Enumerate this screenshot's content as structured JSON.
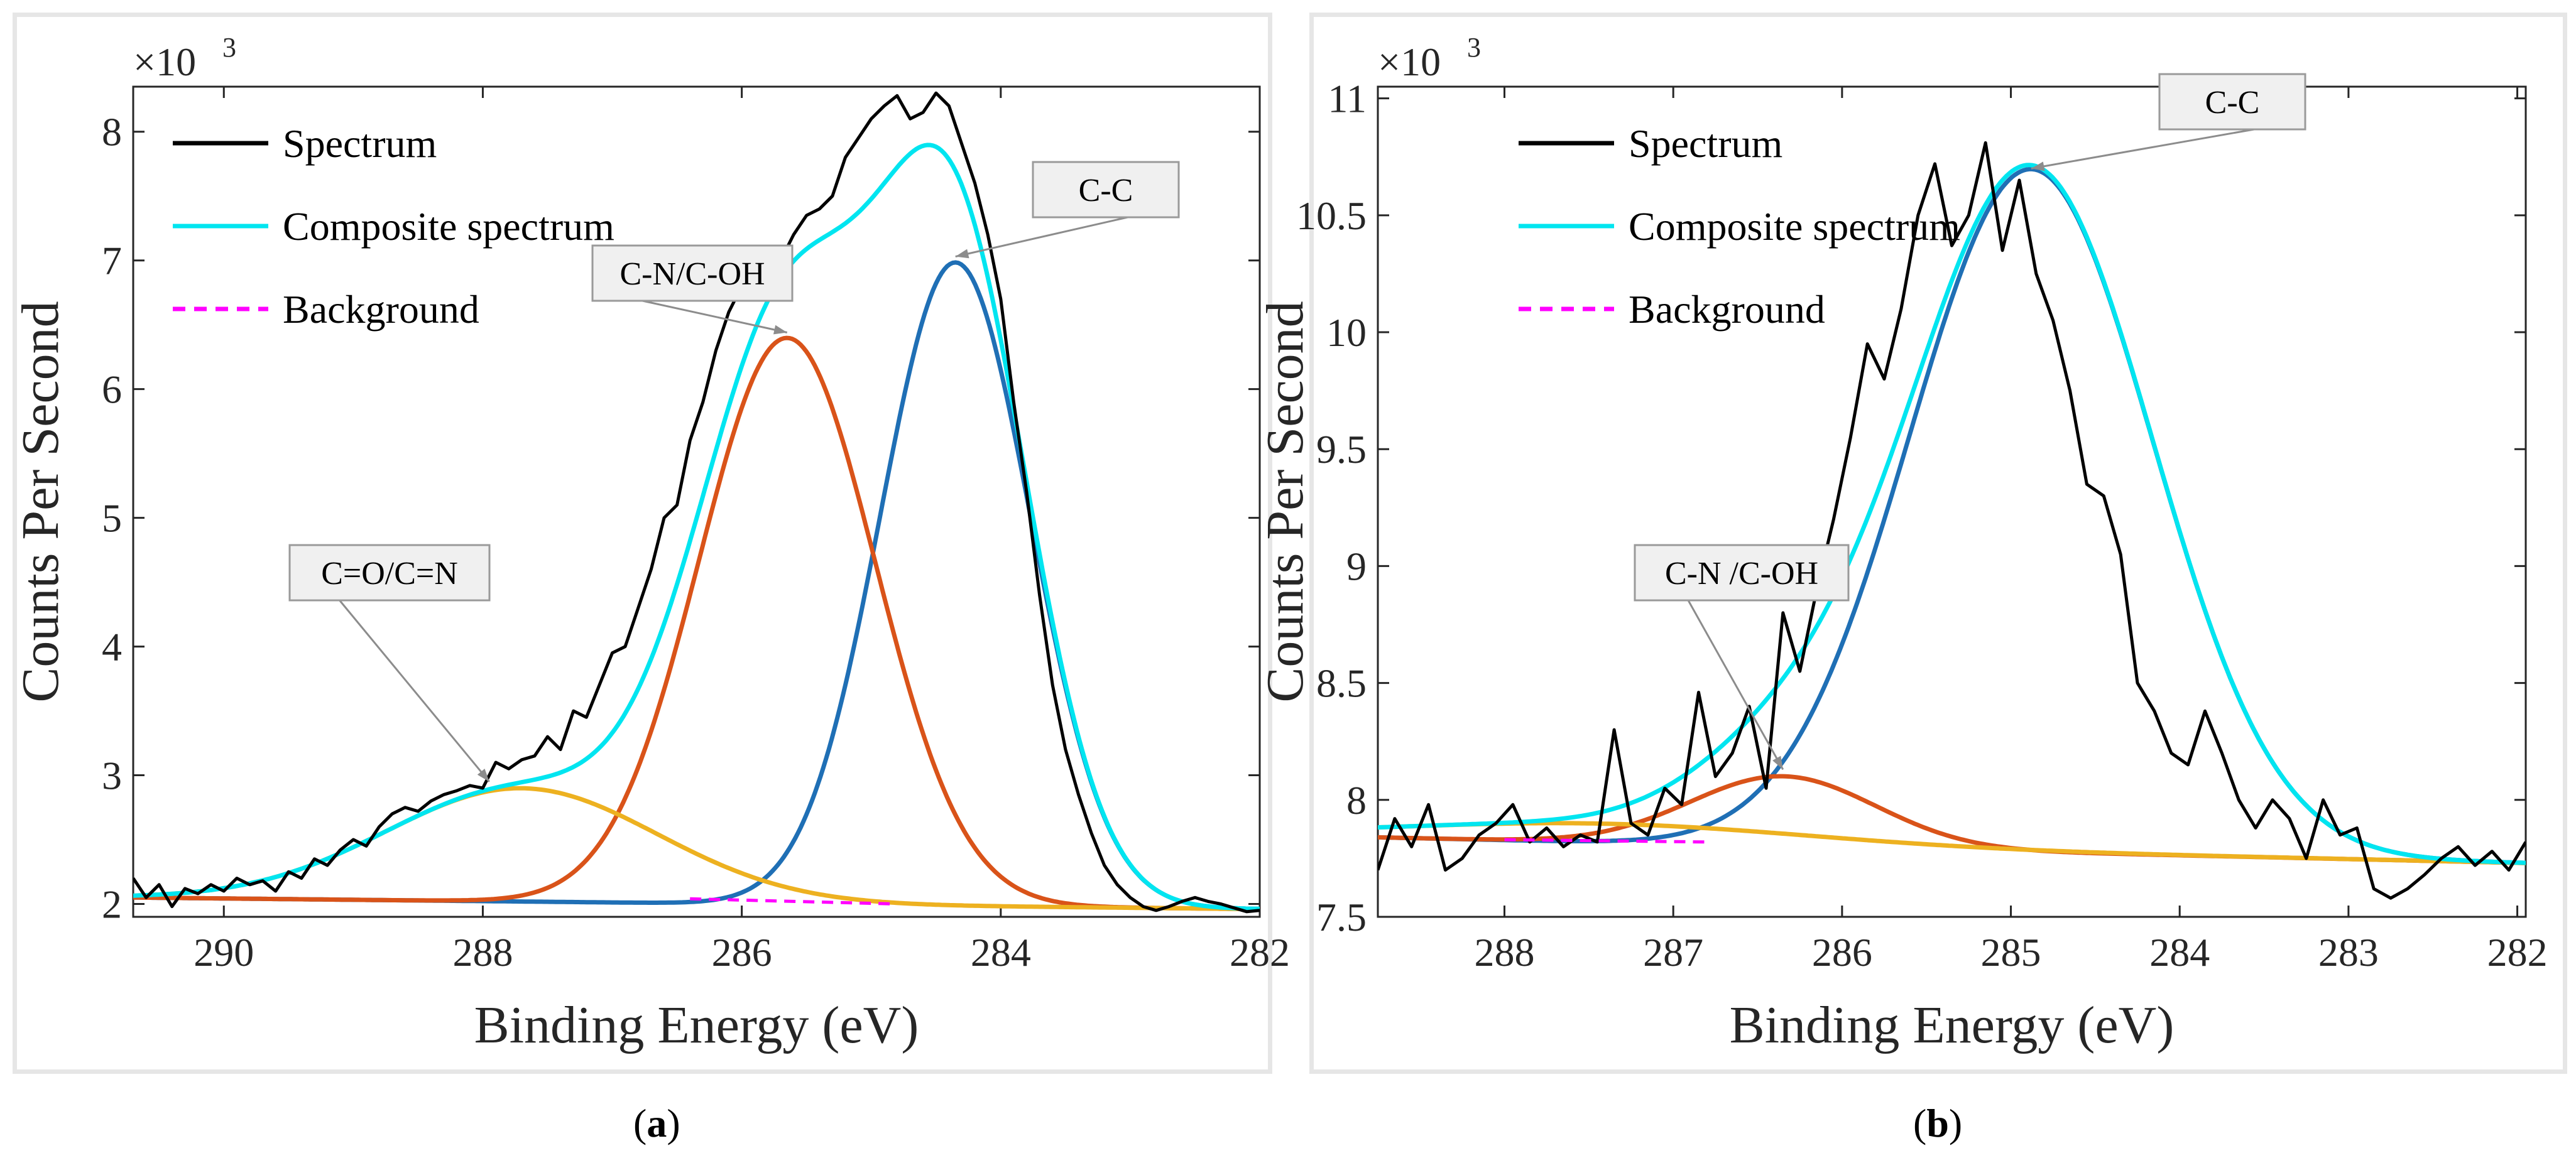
{
  "chart_data": [
    {
      "type": "line",
      "panel_label": "a",
      "xlabel": "Binding Energy (eV)",
      "ylabel": "Counts Per Second",
      "y_exponent_base": "×10",
      "y_exponent": "3",
      "xlim": [
        290.7,
        282.0
      ],
      "ylim": [
        1.9,
        8.35
      ],
      "xticks": [
        290,
        288,
        286,
        284,
        282
      ],
      "yticks": [
        2,
        3,
        4,
        5,
        6,
        7,
        8
      ],
      "legend": [
        {
          "label": "Spectrum",
          "color": "#000000",
          "style": "solid"
        },
        {
          "label": "Composite spectrum",
          "color": "#00e5f0",
          "style": "solid"
        },
        {
          "label": "Background",
          "color": "#ff00ff",
          "style": "dashed"
        }
      ],
      "background": {
        "name": "Background",
        "x": [
          286.4,
          284.8
        ],
        "y": [
          2.04,
          2.0
        ]
      },
      "peaks": [
        {
          "name": "C-C",
          "color": "#1f6fb5",
          "center": 284.35,
          "height": 5.0,
          "sigma": 0.58
        },
        {
          "name": "C-N/C-OH",
          "color": "#d95319",
          "center": 285.65,
          "height": 4.4,
          "sigma": 0.68
        },
        {
          "name": "C=O/C=N",
          "color": "#edb120",
          "center": 287.7,
          "height": 0.88,
          "sigma": 1.05
        }
      ],
      "spectrum": {
        "name": "Spectrum",
        "x": [
          290.7,
          290.6,
          290.5,
          290.4,
          290.3,
          290.2,
          290.1,
          290.0,
          289.9,
          289.8,
          289.7,
          289.6,
          289.5,
          289.4,
          289.3,
          289.2,
          289.1,
          289.0,
          288.9,
          288.8,
          288.7,
          288.6,
          288.5,
          288.4,
          288.3,
          288.2,
          288.1,
          288.0,
          287.9,
          287.8,
          287.7,
          287.6,
          287.5,
          287.4,
          287.3,
          287.2,
          287.1,
          287.0,
          286.9,
          286.8,
          286.7,
          286.6,
          286.5,
          286.4,
          286.3,
          286.2,
          286.1,
          286.0,
          285.9,
          285.8,
          285.7,
          285.6,
          285.5,
          285.4,
          285.3,
          285.2,
          285.1,
          285.0,
          284.9,
          284.8,
          284.7,
          284.6,
          284.5,
          284.4,
          284.3,
          284.2,
          284.1,
          284.0,
          283.9,
          283.8,
          283.7,
          283.6,
          283.5,
          283.4,
          283.3,
          283.2,
          283.1,
          283.0,
          282.9,
          282.8,
          282.7,
          282.6,
          282.5,
          282.4,
          282.3,
          282.2,
          282.1,
          282.0
        ],
        "y": [
          2.2,
          2.05,
          2.15,
          1.98,
          2.12,
          2.08,
          2.15,
          2.1,
          2.2,
          2.15,
          2.18,
          2.1,
          2.25,
          2.2,
          2.35,
          2.3,
          2.42,
          2.5,
          2.45,
          2.6,
          2.7,
          2.75,
          2.72,
          2.8,
          2.85,
          2.88,
          2.92,
          2.9,
          3.1,
          3.05,
          3.12,
          3.15,
          3.3,
          3.2,
          3.5,
          3.45,
          3.7,
          3.95,
          4.0,
          4.3,
          4.6,
          5.0,
          5.1,
          5.6,
          5.9,
          6.3,
          6.6,
          6.8,
          6.75,
          6.95,
          7.0,
          7.2,
          7.35,
          7.4,
          7.5,
          7.8,
          7.95,
          8.1,
          8.2,
          8.28,
          8.1,
          8.15,
          8.3,
          8.2,
          7.9,
          7.6,
          7.2,
          6.7,
          5.9,
          5.2,
          4.4,
          3.7,
          3.2,
          2.85,
          2.55,
          2.3,
          2.15,
          2.05,
          1.98,
          1.95,
          1.98,
          2.02,
          2.05,
          2.02,
          2.0,
          1.97,
          1.94,
          1.95
        ]
      },
      "annotations": [
        {
          "text": "C-C",
          "target_x": 284.35,
          "target_y": 7.03
        },
        {
          "text": "C-N/C-OH",
          "target_x": 285.65,
          "target_y": 6.44
        },
        {
          "text": "C=O/C=N",
          "target_x": 287.95,
          "target_y": 2.95
        }
      ]
    },
    {
      "type": "line",
      "panel_label": "b",
      "xlabel": "Binding Energy (eV)",
      "ylabel": "Counts Per Second",
      "y_exponent_base": "×10",
      "y_exponent": "3",
      "xlim": [
        288.75,
        281.95
      ],
      "ylim": [
        7.5,
        11.05
      ],
      "xticks": [
        288,
        287,
        286,
        285,
        284,
        283,
        282
      ],
      "yticks": [
        7.5,
        8,
        8.5,
        9,
        9.5,
        10,
        10.5,
        11
      ],
      "legend": [
        {
          "label": "Spectrum",
          "color": "#000000",
          "style": "solid"
        },
        {
          "label": "Composite spectrum",
          "color": "#00e5f0",
          "style": "solid"
        },
        {
          "label": "Background",
          "color": "#ff00ff",
          "style": "dashed"
        }
      ],
      "background": {
        "name": "Background",
        "x": [
          288.0,
          286.8
        ],
        "y": [
          7.83,
          7.82
        ]
      },
      "peaks": [
        {
          "name": "C-C",
          "color": "#1f6fb5",
          "center": 284.88,
          "height": 2.92,
          "sigma": 0.72
        },
        {
          "name": "C-N /C-OH",
          "color": "#d95319",
          "center": 286.35,
          "height": 0.3,
          "sigma": 0.55
        },
        {
          "name": "",
          "color": "#edb120",
          "center": 287.4,
          "height": 0.08,
          "sigma": 1.2
        }
      ],
      "spectrum": {
        "name": "Spectrum",
        "x": [
          288.75,
          288.65,
          288.55,
          288.45,
          288.35,
          288.25,
          288.15,
          288.05,
          287.95,
          287.85,
          287.75,
          287.65,
          287.55,
          287.45,
          287.35,
          287.25,
          287.15,
          287.05,
          286.95,
          286.85,
          286.75,
          286.65,
          286.55,
          286.45,
          286.35,
          286.25,
          286.15,
          286.05,
          285.95,
          285.85,
          285.75,
          285.65,
          285.55,
          285.45,
          285.35,
          285.25,
          285.15,
          285.05,
          284.95,
          284.85,
          284.75,
          284.65,
          284.55,
          284.45,
          284.35,
          284.25,
          284.15,
          284.05,
          283.95,
          283.85,
          283.75,
          283.65,
          283.55,
          283.45,
          283.35,
          283.25,
          283.15,
          283.05,
          282.95,
          282.85,
          282.75,
          282.65,
          282.55,
          282.45,
          282.35,
          282.25,
          282.15,
          282.05,
          281.95
        ],
        "y": [
          7.7,
          7.92,
          7.8,
          7.98,
          7.7,
          7.75,
          7.85,
          7.9,
          7.98,
          7.82,
          7.88,
          7.8,
          7.85,
          7.82,
          8.3,
          7.9,
          7.85,
          8.05,
          7.98,
          8.46,
          8.1,
          8.2,
          8.4,
          8.05,
          8.8,
          8.55,
          8.9,
          9.2,
          9.55,
          9.95,
          9.8,
          10.1,
          10.5,
          10.72,
          10.37,
          10.5,
          10.81,
          10.35,
          10.65,
          10.25,
          10.05,
          9.75,
          9.35,
          9.3,
          9.05,
          8.5,
          8.38,
          8.2,
          8.15,
          8.38,
          8.2,
          8.0,
          7.88,
          8.0,
          7.92,
          7.75,
          8.0,
          7.85,
          7.88,
          7.62,
          7.58,
          7.62,
          7.68,
          7.75,
          7.8,
          7.72,
          7.78,
          7.7,
          7.82
        ]
      },
      "annotations": [
        {
          "text": "C-C",
          "target_x": 284.88,
          "target_y": 10.7
        },
        {
          "text": "C-N /C-OH",
          "target_x": 286.35,
          "target_y": 8.13
        }
      ]
    }
  ],
  "captions": {
    "a": "a",
    "b": "b"
  }
}
